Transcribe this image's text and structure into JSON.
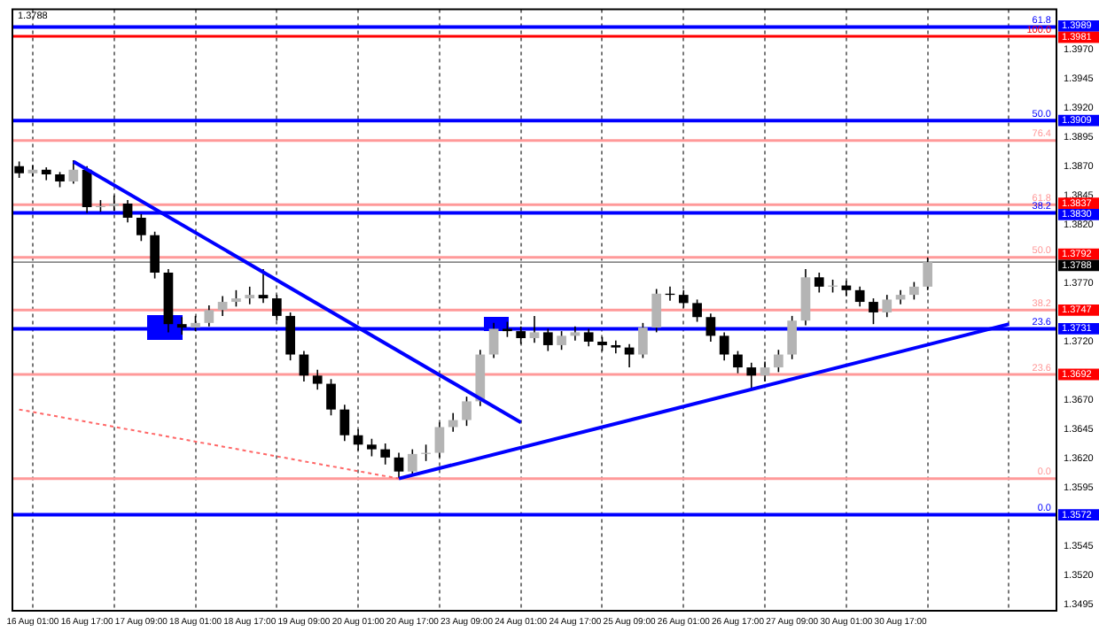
{
  "chart_data": {
    "type": "candlestick",
    "color": "#000000",
    "colors": [
      "#000000",
      "#b4b4b4",
      "#000000",
      "#000000",
      "#b4b4b4",
      "#000000",
      "#b4b4b4",
      "#b4b4b4",
      "#000000",
      "#000000",
      "#000000",
      "#000000",
      "#000000",
      "#b4b4b4",
      "#b4b4b4",
      "#b4b4b4",
      "#b4b4b4",
      "#b4b4b4",
      "#000000",
      "#000000",
      "#000000",
      "#000000",
      "#000000",
      "#000000",
      "#000000",
      "#000000",
      "#000000",
      "#000000",
      "#000000",
      "#b4b4b4",
      "#b4b4b4",
      "#b4b4b4",
      "#b4b4b4",
      "#b4b4b4",
      "#b4b4b4",
      "#b4b4b4",
      "#000000",
      "#000000",
      "#b4b4b4",
      "#000000",
      "#b4b4b4",
      "#b4b4b4",
      "#000000",
      "#000000",
      "#000000",
      "#000000",
      "#b4b4b4",
      "#b4b4b4",
      "#000000",
      "#000000",
      "#000000",
      "#000000",
      "#000000",
      "#000000",
      "#000000",
      "#b4b4b4",
      "#b4b4b4",
      "#b4b4b4",
      "#b4b4b4",
      "#000000",
      "#b4b4b4",
      "#000000",
      "#000000",
      "#000000",
      "#b4b4b4",
      "#b4b4b4",
      "#b4b4b4",
      "#b4b4b4",
      null,
      null,
      null,
      null,
      null,
      null,
      null,
      null,
      null
    ],
    "categories": [
      null,
      "16 Aug 01:00",
      null,
      null,
      null,
      "16 Aug 17:00",
      null,
      null,
      null,
      "17 Aug 09:00",
      null,
      null,
      null,
      "18 Aug 01:00",
      null,
      null,
      null,
      "18 Aug 17:00",
      null,
      null,
      null,
      "19 Aug 09:00",
      null,
      null,
      null,
      "20 Aug 01:00",
      null,
      null,
      null,
      "20 Aug 17:00",
      null,
      null,
      null,
      "23 Aug 09:00",
      null,
      null,
      null,
      "24 Aug 01:00",
      null,
      null,
      null,
      "24 Aug 17:00",
      null,
      null,
      null,
      "25 Aug 09:00",
      null,
      null,
      null,
      "26 Aug 01:00",
      null,
      null,
      null,
      "26 Aug 17:00",
      null,
      null,
      null,
      "27 Aug 09:00",
      null,
      null,
      null,
      "30 Aug 01:00",
      null,
      null,
      null,
      "30 Aug 17:00",
      null,
      null,
      null,
      null,
      null,
      null,
      null,
      null,
      null,
      null,
      null
    ],
    "ohlc": [
      [
        1.387,
        1.3874,
        1.386,
        1.3864
      ],
      [
        1.3864,
        1.3871,
        1.3861,
        1.3867
      ],
      [
        1.3867,
        1.3869,
        1.3858,
        1.3863
      ],
      [
        1.3863,
        1.3865,
        1.3852,
        1.3857
      ],
      [
        1.3857,
        1.3875,
        1.3855,
        1.3867
      ],
      [
        1.3867,
        1.387,
        1.383,
        1.3835
      ],
      [
        1.3835,
        1.3841,
        1.3831,
        1.3836
      ],
      [
        1.3836,
        1.3845,
        1.3832,
        1.3838
      ],
      [
        1.3838,
        1.3841,
        1.3822,
        1.3826
      ],
      [
        1.3826,
        1.3829,
        1.3806,
        1.3811
      ],
      [
        1.3811,
        1.3814,
        1.3774,
        1.3779
      ],
      [
        1.3779,
        1.3782,
        1.3728,
        1.3735
      ],
      [
        1.3735,
        1.3741,
        1.3726,
        1.3732
      ],
      [
        1.3732,
        1.3742,
        1.3729,
        1.3736
      ],
      [
        1.3736,
        1.3751,
        1.3733,
        1.3747
      ],
      [
        1.3747,
        1.3759,
        1.3742,
        1.3754
      ],
      [
        1.3754,
        1.3764,
        1.375,
        1.3757
      ],
      [
        1.3757,
        1.3767,
        1.3752,
        1.376
      ],
      [
        1.376,
        1.3782,
        1.3753,
        1.3757
      ],
      [
        1.3757,
        1.376,
        1.3738,
        1.3742
      ],
      [
        1.3742,
        1.3745,
        1.3704,
        1.3709
      ],
      [
        1.3709,
        1.3712,
        1.3686,
        1.3691
      ],
      [
        1.3691,
        1.3696,
        1.3679,
        1.3684
      ],
      [
        1.3684,
        1.3688,
        1.3657,
        1.3662
      ],
      [
        1.3662,
        1.3666,
        1.3635,
        1.364
      ],
      [
        1.364,
        1.3645,
        1.3627,
        1.3632
      ],
      [
        1.3632,
        1.3637,
        1.3622,
        1.3628
      ],
      [
        1.3628,
        1.3633,
        1.3615,
        1.3621
      ],
      [
        1.3621,
        1.3625,
        1.3603,
        1.3609
      ],
      [
        1.3609,
        1.3628,
        1.3606,
        1.3624
      ],
      [
        1.3624,
        1.3632,
        1.3618,
        1.3625
      ],
      [
        1.3625,
        1.3651,
        1.3621,
        1.3647
      ],
      [
        1.3647,
        1.3659,
        1.3643,
        1.3653
      ],
      [
        1.3653,
        1.3673,
        1.3648,
        1.3669
      ],
      [
        1.3669,
        1.3713,
        1.3665,
        1.3709
      ],
      [
        1.3709,
        1.3736,
        1.3706,
        1.3731
      ],
      [
        1.3731,
        1.3737,
        1.3724,
        1.3729
      ],
      [
        1.3729,
        1.3733,
        1.3718,
        1.3723
      ],
      [
        1.3723,
        1.3742,
        1.3719,
        1.3728
      ],
      [
        1.3728,
        1.3731,
        1.3712,
        1.3717
      ],
      [
        1.3717,
        1.3729,
        1.3713,
        1.3725
      ],
      [
        1.3725,
        1.3733,
        1.3721,
        1.3728
      ],
      [
        1.3728,
        1.3731,
        1.3716,
        1.372
      ],
      [
        1.372,
        1.3724,
        1.3712,
        1.3717
      ],
      [
        1.3717,
        1.3721,
        1.371,
        1.3715
      ],
      [
        1.3715,
        1.3718,
        1.3698,
        1.3709
      ],
      [
        1.3709,
        1.3736,
        1.3706,
        1.3732
      ],
      [
        1.3732,
        1.3765,
        1.3728,
        1.3761
      ],
      [
        1.3761,
        1.3767,
        1.3755,
        1.376
      ],
      [
        1.376,
        1.3764,
        1.3749,
        1.3753
      ],
      [
        1.3753,
        1.3756,
        1.3737,
        1.3741
      ],
      [
        1.3741,
        1.3744,
        1.372,
        1.3725
      ],
      [
        1.3725,
        1.3728,
        1.3704,
        1.3709
      ],
      [
        1.3709,
        1.3712,
        1.3693,
        1.3698
      ],
      [
        1.3698,
        1.3702,
        1.3679,
        1.3691
      ],
      [
        1.3691,
        1.3703,
        1.3686,
        1.3698
      ],
      [
        1.3698,
        1.3713,
        1.3694,
        1.3709
      ],
      [
        1.3709,
        1.3742,
        1.3705,
        1.3738
      ],
      [
        1.3738,
        1.3782,
        1.3734,
        1.3775
      ],
      [
        1.3775,
        1.3779,
        1.3762,
        1.3767
      ],
      [
        1.3767,
        1.3773,
        1.3762,
        1.3768
      ],
      [
        1.3768,
        1.3772,
        1.3759,
        1.3764
      ],
      [
        1.3764,
        1.3767,
        1.375,
        1.3754
      ],
      [
        1.3754,
        1.3757,
        1.3735,
        1.3745
      ],
      [
        1.3745,
        1.376,
        1.3741,
        1.3756
      ],
      [
        1.3756,
        1.3764,
        1.3752,
        1.376
      ],
      [
        1.376,
        1.3771,
        1.3756,
        1.3767
      ],
      [
        1.3767,
        1.3792,
        1.3764,
        1.3788
      ],
      null,
      null,
      null,
      null,
      null,
      null,
      null,
      null,
      null
    ],
    "series": [
      {
        "type": "line",
        "color": "#0000ff",
        "values": [
          null,
          null,
          null,
          null,
          1.3874,
          null,
          null,
          null,
          null,
          null,
          null,
          null,
          null,
          null,
          null,
          null,
          null,
          null,
          null,
          null,
          null,
          null,
          null,
          null,
          null,
          null,
          null,
          null,
          null,
          null,
          null,
          null,
          null,
          null,
          null,
          null,
          null,
          1.3651,
          null,
          null,
          null,
          null,
          null,
          null,
          null,
          null,
          null,
          null,
          null,
          null,
          null,
          null,
          null,
          null,
          null,
          null,
          null,
          null,
          null,
          null,
          null,
          null,
          null,
          null,
          null,
          null,
          null,
          null,
          null,
          null,
          null,
          null,
          null,
          null,
          null,
          null,
          null
        ]
      },
      {
        "type": "line",
        "color": "#0000ff",
        "values": [
          null,
          null,
          null,
          null,
          null,
          null,
          null,
          null,
          null,
          null,
          null,
          null,
          null,
          null,
          null,
          null,
          null,
          null,
          null,
          null,
          null,
          null,
          null,
          null,
          null,
          null,
          null,
          null,
          1.3603,
          null,
          null,
          null,
          null,
          null,
          null,
          null,
          null,
          null,
          null,
          null,
          null,
          null,
          null,
          null,
          null,
          null,
          null,
          null,
          null,
          null,
          null,
          null,
          null,
          null,
          null,
          null,
          null,
          null,
          null,
          null,
          null,
          null,
          null,
          null,
          null,
          null,
          null,
          null,
          null,
          null,
          null,
          null,
          null,
          1.3735,
          null,
          null,
          null
        ]
      },
      {
        "type": "line",
        "color": "#ff6666",
        "line_style": "dotted",
        "values": [
          1.3662,
          null,
          null,
          null,
          null,
          null,
          null,
          null,
          null,
          null,
          null,
          null,
          null,
          null,
          null,
          null,
          null,
          null,
          null,
          null,
          null,
          null,
          null,
          null,
          null,
          null,
          null,
          null,
          1.3603,
          null,
          null,
          null,
          null,
          null,
          null,
          null,
          null,
          null,
          null,
          null,
          null,
          null,
          null,
          null,
          null,
          null,
          null,
          null,
          null,
          null,
          null,
          null,
          null,
          null,
          null,
          null,
          null,
          null,
          null,
          null,
          null,
          null,
          null,
          null,
          null,
          null,
          null,
          null,
          null,
          null,
          null,
          null,
          null,
          null,
          null,
          null,
          null
        ]
      }
    ],
    "ylim": [
      1.349,
      1.4004
    ],
    "yticks": [
      {
        "value": 1.3495,
        "label": "1.3495"
      },
      {
        "value": 1.352,
        "label": "1.3520"
      },
      {
        "value": 1.3545,
        "label": "1.3545"
      },
      {
        "value": 1.3595,
        "label": "1.3595"
      },
      {
        "value": 1.362,
        "label": "1.3620"
      },
      {
        "value": 1.3645,
        "label": "1.3645"
      },
      {
        "value": 1.367,
        "label": "1.3670"
      },
      {
        "value": 1.372,
        "label": "1.3720"
      },
      {
        "value": 1.377,
        "label": "1.3770"
      },
      {
        "value": 1.382,
        "label": "1.3820"
      },
      {
        "value": 1.3845,
        "label": "1.3845"
      },
      {
        "value": 1.387,
        "label": "1.3870"
      },
      {
        "value": 1.3895,
        "label": "1.3895"
      },
      {
        "value": 1.392,
        "label": "1.3920"
      },
      {
        "value": 1.3945,
        "label": "1.3945"
      },
      {
        "value": 1.397,
        "label": "1.3970"
      }
    ],
    "grid": "x",
    "legend": false,
    "ref_lines": [
      {
        "axis": "y",
        "value": 1.3989,
        "label": "1.3989",
        "color": "#0000ff"
      },
      {
        "axis": "y",
        "value": 1.3909,
        "label": "1.3909",
        "color": "#0000ff"
      },
      {
        "axis": "y",
        "value": 1.383,
        "label": "1.3830",
        "color": "#0000ff"
      },
      {
        "axis": "y",
        "value": 1.3731,
        "label": "1.3731",
        "color": "#0000ff"
      },
      {
        "axis": "y",
        "value": 1.3572,
        "label": "1.3572",
        "color": "#0000ff"
      },
      {
        "axis": "y",
        "value": 1.3981,
        "label": "1.3981",
        "color": "#ff0000"
      },
      {
        "axis": "y",
        "value": 1.3892,
        "color": "#ff9999"
      },
      {
        "axis": "y",
        "value": 1.3837,
        "label": "1.3837",
        "color": "#ff9999"
      },
      {
        "axis": "y",
        "value": 1.3792,
        "label": "1.3792",
        "color": "#ff9999"
      },
      {
        "axis": "y",
        "value": 1.3747,
        "label": "1.3747",
        "color": "#ff9999"
      },
      {
        "axis": "y",
        "value": 1.3692,
        "label": "1.3692",
        "color": "#ff9999"
      },
      {
        "axis": "y",
        "value": 1.3603,
        "color": "#ff9999"
      },
      {
        "axis": "y",
        "value": 1.3788,
        "label": "1.3788",
        "color": "#000000"
      }
    ],
    "annotations": [
      "1.3788",
      {
        "text": "61.8",
        "y": 1.3989
      },
      {
        "text": "100.0",
        "y": 1.3981
      },
      {
        "text": "50.0",
        "y": 1.3909
      },
      {
        "text": "76.4",
        "y": 1.3892
      },
      {
        "text": "61.8",
        "y": 1.3837
      },
      {
        "text": "38.2",
        "y": 1.383
      },
      {
        "text": "50.0",
        "y": 1.3792
      },
      {
        "text": "38.2",
        "y": 1.3747
      },
      {
        "text": "23.6",
        "y": 1.3731
      },
      {
        "text": "23.6",
        "y": 1.3692
      },
      {
        "text": "0.0",
        "y": 1.3603
      },
      {
        "text": "0.0",
        "y": 1.3572
      }
    ]
  }
}
